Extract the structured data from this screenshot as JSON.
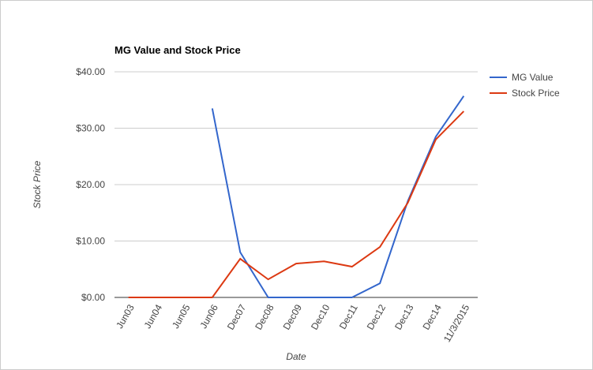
{
  "chart_data": {
    "type": "line",
    "title": "MG Value and Stock Price",
    "x_label": "Date",
    "y_label": "Stock Price",
    "categories": [
      "Jun03",
      "Jun04",
      "Jun05",
      "Jun06",
      "Dec07",
      "Dec08",
      "Dec09",
      "Dec10",
      "Dec11",
      "Dec12",
      "Dec13",
      "Dec14",
      "11/3/2015"
    ],
    "series": [
      {
        "name": "MG Value",
        "color": "#3366cc",
        "values": [
          null,
          null,
          null,
          33.5,
          8.0,
          0,
          0,
          0,
          0,
          2.5,
          17.1,
          28.5,
          35.7
        ]
      },
      {
        "name": "Stock Price",
        "color": "#dc3912",
        "values": [
          0,
          0,
          0,
          0,
          6.85,
          3.2,
          6.0,
          6.4,
          5.45,
          8.95,
          16.8,
          28.0,
          33.0
        ]
      }
    ],
    "ylim": [
      0,
      40
    ],
    "yticks": [
      {
        "value": 0,
        "label": "$0.00"
      },
      {
        "value": 10,
        "label": "$10.00"
      },
      {
        "value": 20,
        "label": "$20.00"
      },
      {
        "value": 30,
        "label": "$30.00"
      },
      {
        "value": 40,
        "label": "$40.00"
      }
    ],
    "grid": true,
    "legend": "right"
  }
}
